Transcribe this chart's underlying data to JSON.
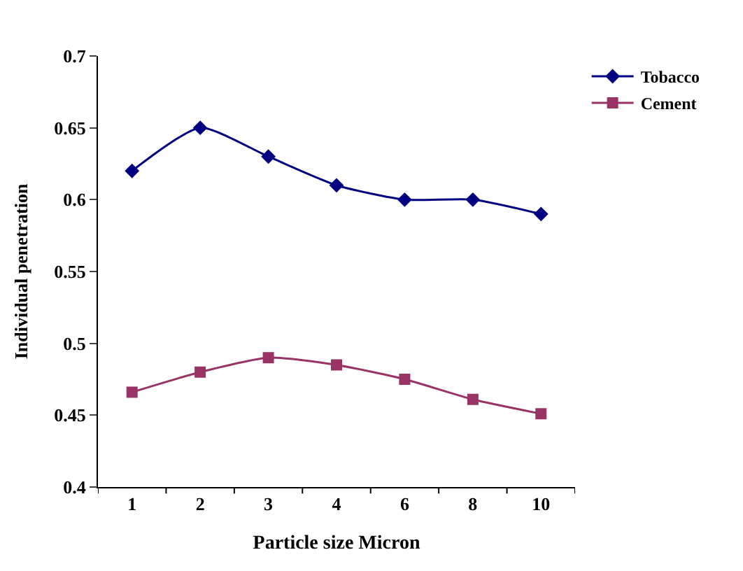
{
  "chart_data": {
    "type": "line",
    "xlabel": "Particle size Micron",
    "ylabel": "Individual penetration",
    "categories": [
      "1",
      "2",
      "3",
      "4",
      "6",
      "8",
      "10"
    ],
    "series": [
      {
        "name": "Tobacco",
        "color": "#000080",
        "marker": "diamond",
        "values": [
          0.62,
          0.65,
          0.63,
          0.61,
          0.6,
          0.6,
          0.59
        ]
      },
      {
        "name": "Cement",
        "color": "#993366",
        "marker": "square",
        "values": [
          0.466,
          0.48,
          0.49,
          0.485,
          0.475,
          0.461,
          0.451
        ]
      }
    ],
    "ylim": [
      0.4,
      0.7
    ],
    "yticks": [
      0.4,
      0.45,
      0.5,
      0.55,
      0.6,
      0.65,
      0.7
    ],
    "legend": "top right"
  }
}
